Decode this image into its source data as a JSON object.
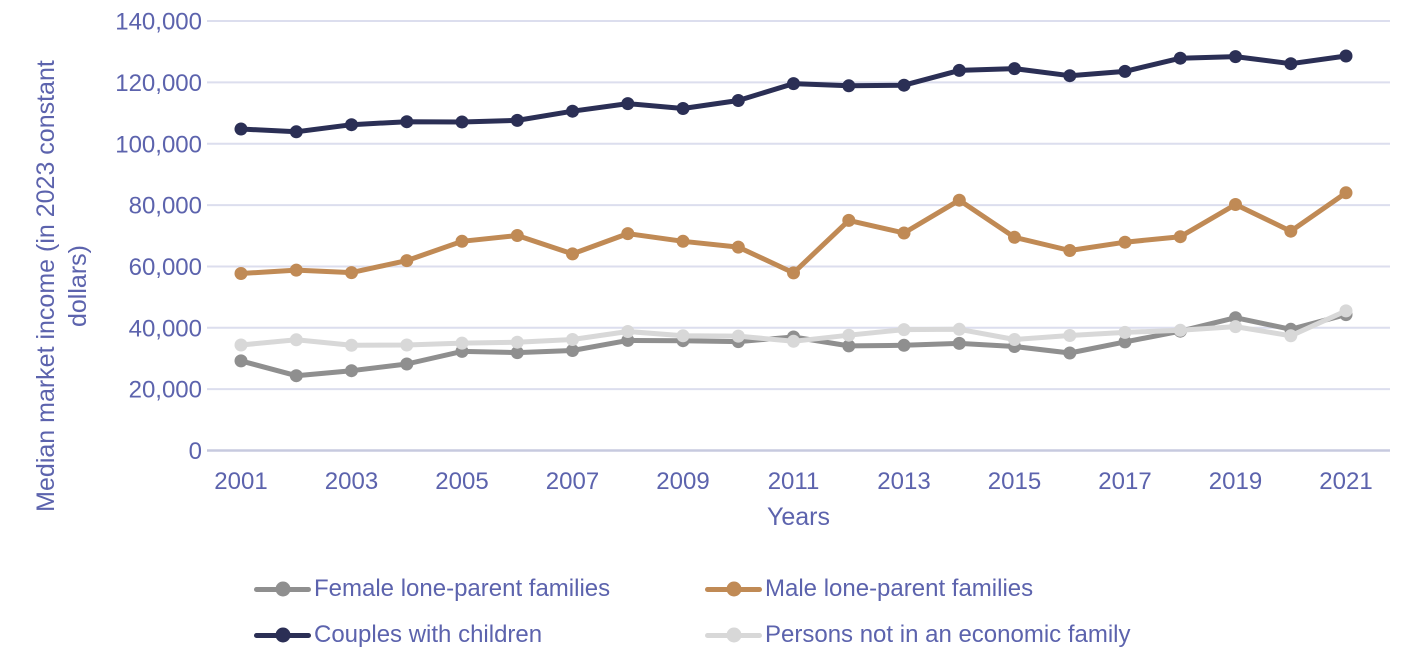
{
  "chart_data": {
    "type": "line",
    "title": "",
    "xlabel": "Years",
    "ylabel": "Median market income (in 2023 constant dollars)",
    "ylabel_lines": [
      "Median market income (in 2023 constant",
      "dollars)"
    ],
    "x": [
      2001,
      2002,
      2003,
      2004,
      2005,
      2006,
      2007,
      2008,
      2009,
      2010,
      2011,
      2012,
      2013,
      2014,
      2015,
      2016,
      2017,
      2018,
      2019,
      2020,
      2021
    ],
    "x_tick_labels": [
      "2001",
      "2003",
      "2005",
      "2007",
      "2009",
      "2011",
      "2013",
      "2015",
      "2017",
      "2019",
      "2021"
    ],
    "y_ticks": [
      0,
      20000,
      40000,
      60000,
      80000,
      100000,
      120000,
      140000
    ],
    "y_tick_labels": [
      "0",
      "20,000",
      "40,000",
      "60,000",
      "80,000",
      "100,000",
      "120,000",
      "140,000"
    ],
    "ylim": [
      0,
      140000
    ],
    "grid": "horizontal-only",
    "legend_position": "bottom",
    "axis_text_color": "#5C63AD",
    "gridline_color": "#DCDEEE",
    "axis_line_color": "#C7CADF",
    "background_color": "#FFFFFF",
    "series": [
      {
        "name": "Female lone-parent families",
        "color": "#8F8F8F",
        "values": [
          29200,
          24400,
          26000,
          28200,
          32300,
          31900,
          32600,
          35900,
          35800,
          35500,
          37000,
          34100,
          34300,
          34900,
          33900,
          31800,
          35400,
          38900,
          43300,
          39500,
          44300
        ]
      },
      {
        "name": "Male lone-parent families",
        "color": "#C08A55",
        "values": [
          57700,
          58800,
          58000,
          61900,
          68200,
          70100,
          64100,
          70700,
          68200,
          66300,
          57900,
          75000,
          70900,
          81600,
          69500,
          65200,
          67900,
          69700,
          80200,
          71500,
          84000
        ]
      },
      {
        "name": "Couples with children",
        "color": "#2B2F55",
        "values": [
          104800,
          103900,
          106200,
          107200,
          107100,
          107600,
          110600,
          113100,
          111500,
          114100,
          119600,
          118900,
          119100,
          123900,
          124500,
          122200,
          123600,
          127900,
          128400,
          126100,
          128600
        ]
      },
      {
        "name": "Persons not in an economic family",
        "color": "#D8D8D8",
        "values": [
          34400,
          36100,
          34300,
          34400,
          35000,
          35300,
          36200,
          38800,
          37400,
          37300,
          35600,
          37600,
          39400,
          39500,
          36200,
          37500,
          38500,
          39200,
          40400,
          37400,
          45500
        ]
      }
    ]
  }
}
